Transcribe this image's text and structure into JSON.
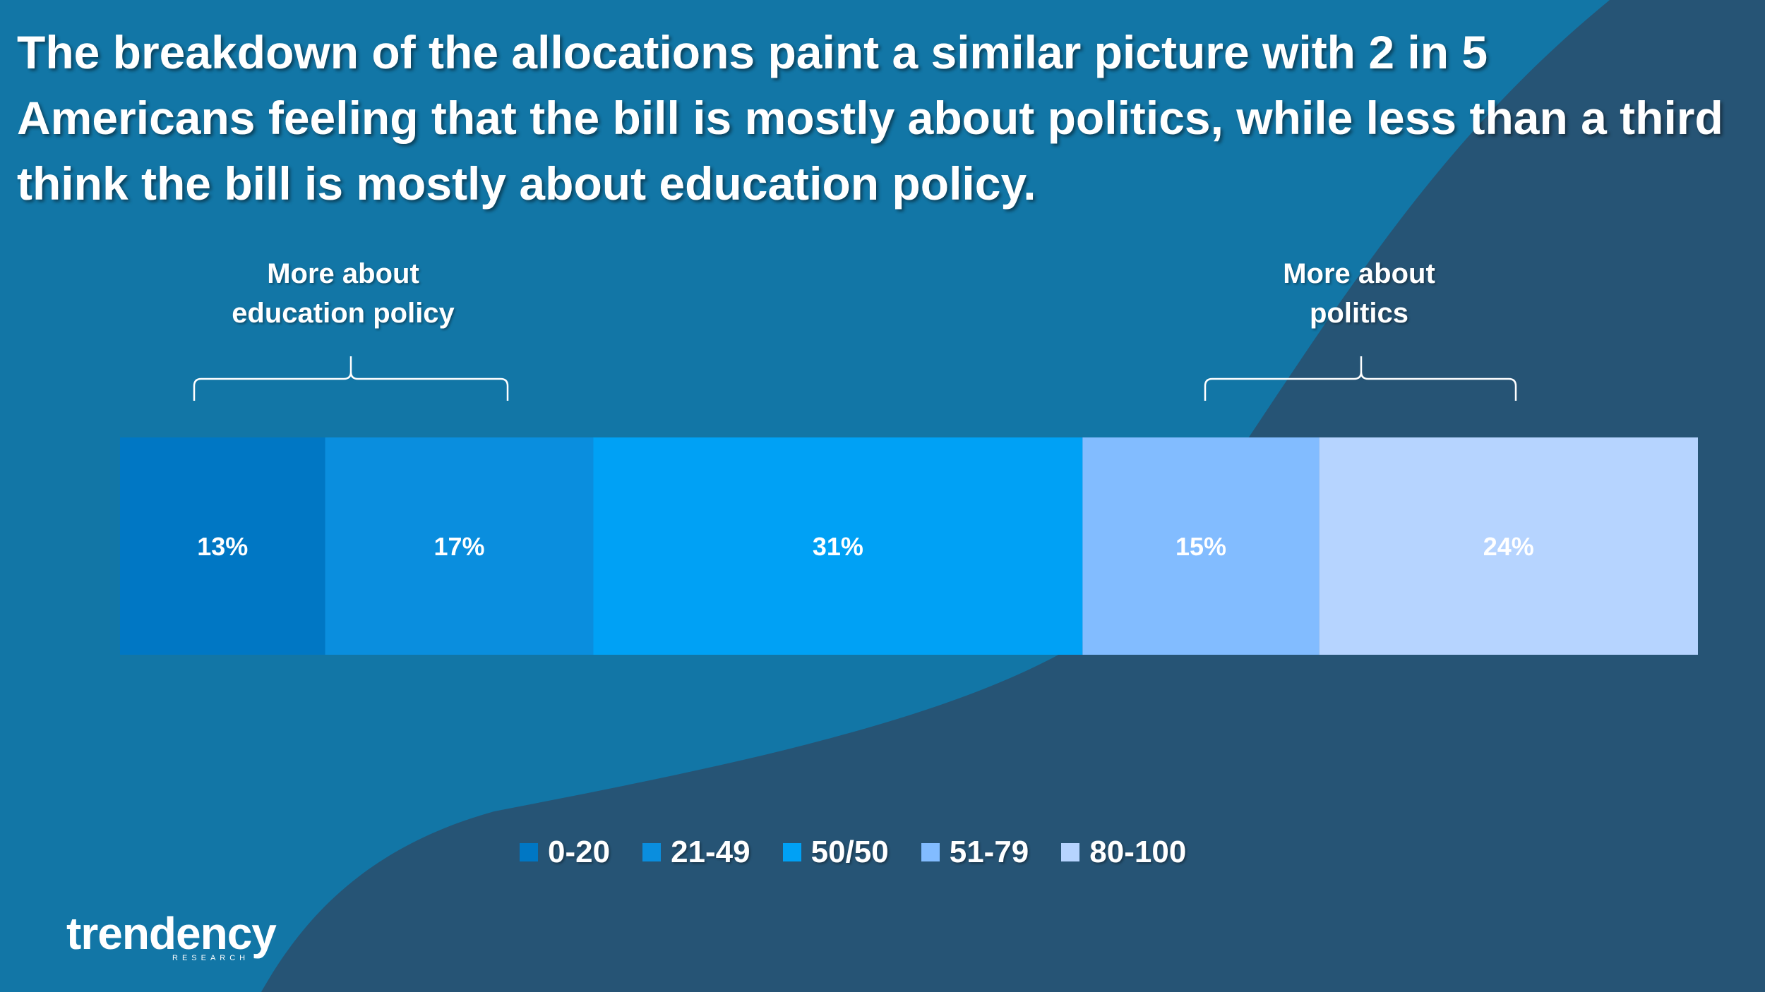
{
  "title": "The breakdown of the allocations paint a similar picture with 2 in 5 Americans feeling that the bill is mostly about politics, while less than a third think the bill is mostly about education policy.",
  "group_labels": {
    "left": [
      "More about",
      "education policy"
    ],
    "right": [
      "More about",
      "politics"
    ]
  },
  "chart_data": {
    "type": "bar",
    "orientation": "horizontal-stacked-100",
    "categories": [
      ""
    ],
    "series": [
      {
        "name": "0-20",
        "values": [
          13
        ],
        "label": "13%",
        "color": "#0077c4"
      },
      {
        "name": "21-49",
        "values": [
          17
        ],
        "label": "17%",
        "color": "#0a8ede"
      },
      {
        "name": "50/50",
        "values": [
          31
        ],
        "label": "31%",
        "color": "#00a1f5"
      },
      {
        "name": "51-79",
        "values": [
          15
        ],
        "label": "15%",
        "color": "#82bcff"
      },
      {
        "name": "80-100",
        "values": [
          24
        ],
        "label": "24%",
        "color": "#b6d4ff"
      }
    ],
    "legend_position": "bottom",
    "grid": false
  },
  "logo": {
    "name": "trendency",
    "sub": "RESEARCH"
  },
  "colors": {
    "background": "#1276a6",
    "background_dark": "#265475",
    "text": "#ffffff"
  }
}
